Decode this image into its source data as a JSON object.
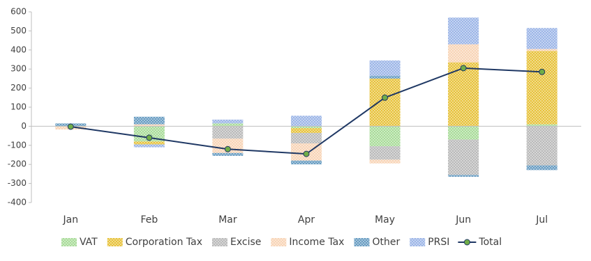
{
  "chart_data": {
    "type": "stacked-bar-line",
    "categories": [
      "Jan",
      "Feb",
      "Mar",
      "Apr",
      "May",
      "Jun",
      "Jul"
    ],
    "series": [
      {
        "name": "VAT",
        "color": "#8fd17a",
        "values": [
          -2,
          -80,
          15,
          -10,
          -105,
          -70,
          10
        ]
      },
      {
        "name": "Corporation Tax",
        "color": "#e0b000",
        "values": [
          0,
          -15,
          0,
          -25,
          250,
          335,
          385
        ]
      },
      {
        "name": "Excise",
        "color": "#a5a5a5",
        "values": [
          0,
          0,
          -65,
          -55,
          -70,
          -185,
          -205
        ]
      },
      {
        "name": "Income Tax",
        "color": "#f6c7a0",
        "values": [
          -15,
          10,
          -75,
          -90,
          -20,
          95,
          10
        ]
      },
      {
        "name": "Other",
        "color": "#3a7fb0",
        "values": [
          15,
          40,
          -15,
          -20,
          15,
          -10,
          -25
        ]
      },
      {
        "name": "PRSI",
        "color": "#7f9fe0",
        "values": [
          0,
          -15,
          20,
          55,
          80,
          140,
          110
        ]
      },
      {
        "name": "Total",
        "type": "line",
        "color": "#1f3864",
        "marker_color": "#70ad47",
        "values": [
          -2,
          -60,
          -120,
          -145,
          150,
          305,
          285
        ]
      }
    ],
    "ylim": [
      -400,
      600
    ],
    "yticks": [
      -400,
      -300,
      -200,
      -100,
      0,
      100,
      200,
      300,
      400,
      500,
      600
    ],
    "grid": false,
    "legend": "bottom"
  }
}
